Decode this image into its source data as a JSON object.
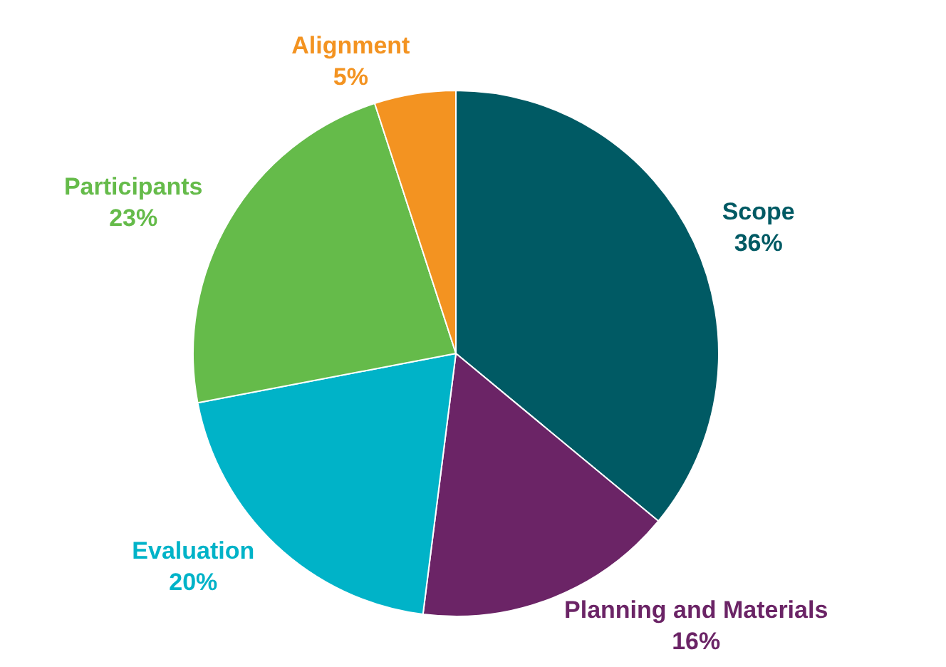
{
  "chart_data": {
    "type": "pie",
    "categories": [
      "Scope",
      "Planning and Materials",
      "Evaluation",
      "Participants",
      "Alignment"
    ],
    "values": [
      36,
      16,
      20,
      23,
      5
    ],
    "value_labels": [
      "36%",
      "16%",
      "20%",
      "23%",
      "5%"
    ],
    "colors": [
      "#005a64",
      "#6b2466",
      "#00b3c8",
      "#65bb4a",
      "#f39321"
    ],
    "legend": false
  }
}
